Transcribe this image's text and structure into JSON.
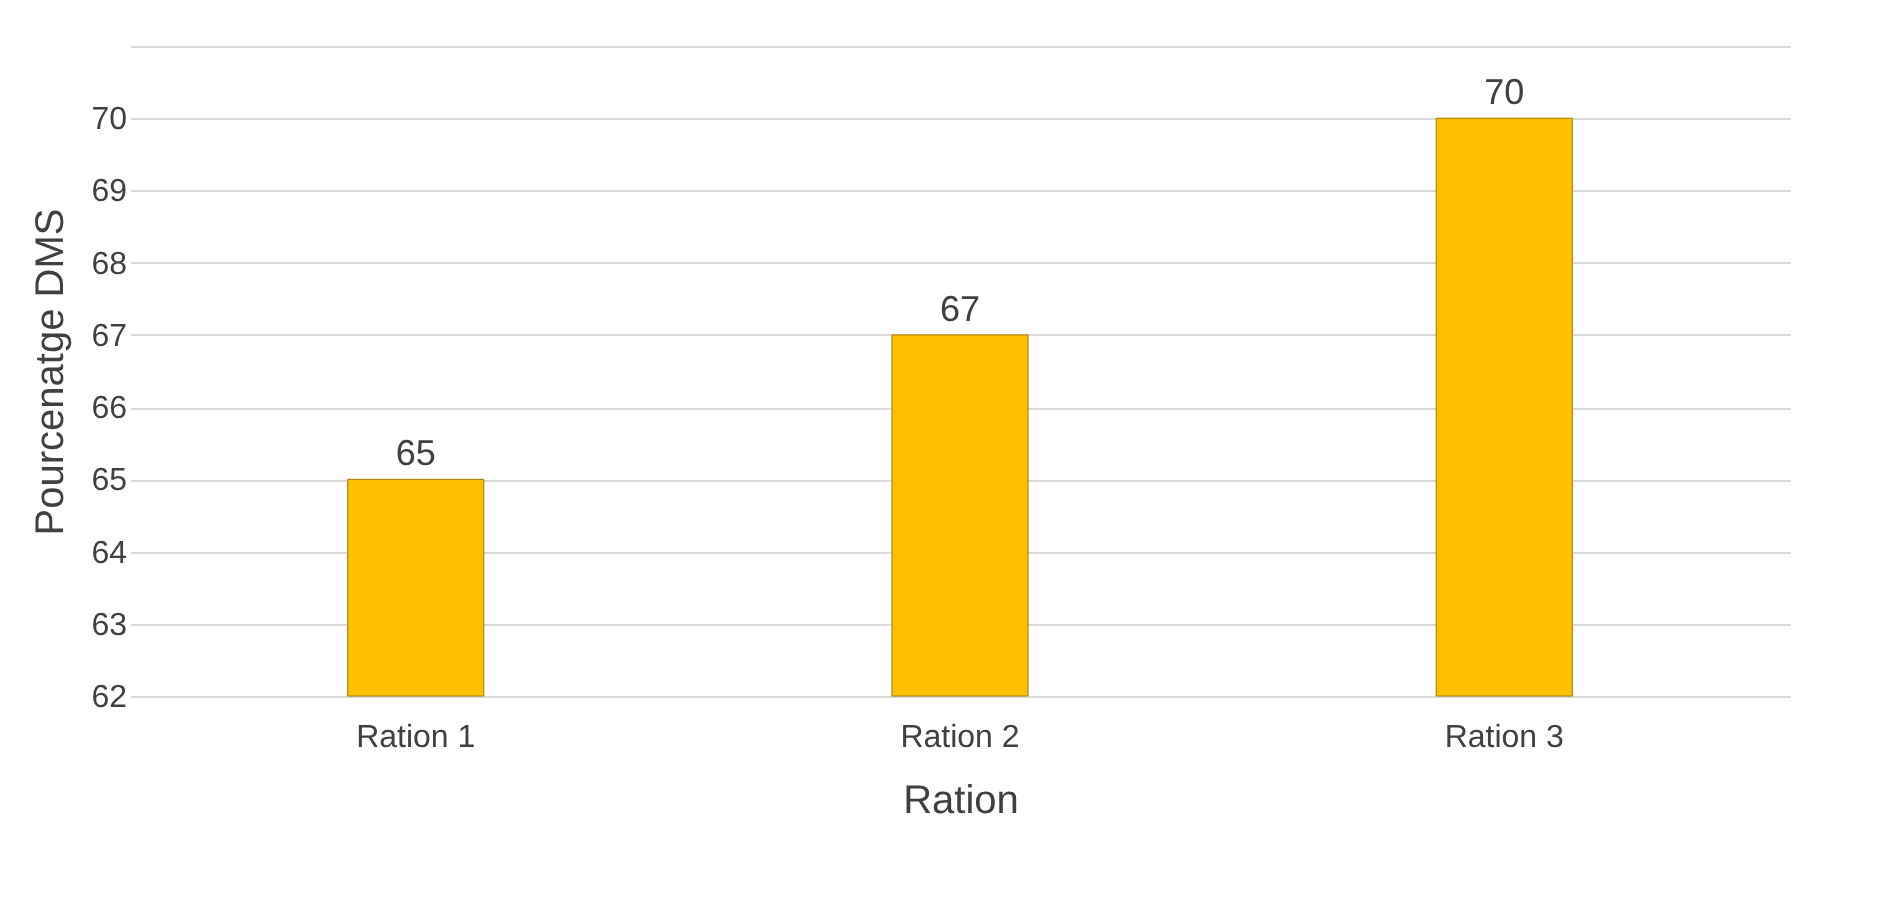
{
  "chart_data": {
    "type": "bar",
    "xlabel": "Ration",
    "ylabel": "Pourcenatge DMS",
    "categories": [
      "Ration 1",
      "Ration 2",
      "Ration 3"
    ],
    "values": [
      65,
      67,
      70
    ],
    "color": "#ffc000",
    "ylim": [
      62,
      71
    ],
    "yticks": [
      62,
      63,
      64,
      65,
      66,
      67,
      68,
      69,
      70,
      {
        "value": 71,
        "label": null
      }
    ],
    "grid": "y",
    "data_labels": true
  }
}
